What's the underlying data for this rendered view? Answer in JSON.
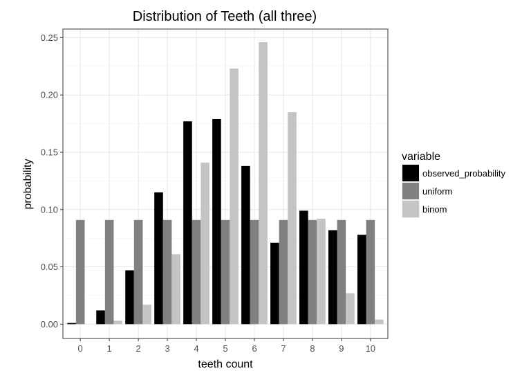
{
  "chart_data": {
    "type": "bar",
    "title": "Distribution of Teeth (all three)",
    "xlabel": "teeth count",
    "ylabel": "probability",
    "categories": [
      "0",
      "1",
      "2",
      "3",
      "4",
      "5",
      "6",
      "7",
      "8",
      "9",
      "10"
    ],
    "ylim": [
      -0.0125,
      0.2575
    ],
    "yticks": [
      0.0,
      0.05,
      0.1,
      0.15,
      0.2,
      0.25
    ],
    "ytick_labels": [
      "0.00",
      "0.05",
      "0.10",
      "0.15",
      "0.20",
      "0.25"
    ],
    "grid": true,
    "legend_title": "variable",
    "legend_position": "right",
    "series": [
      {
        "name": "observed_probability",
        "color": "#000000",
        "values": [
          0.001,
          0.012,
          0.047,
          0.115,
          0.177,
          0.179,
          0.138,
          0.071,
          0.099,
          0.082,
          0.078
        ]
      },
      {
        "name": "uniform",
        "color": "#808080",
        "values": [
          0.0909,
          0.0909,
          0.0909,
          0.0909,
          0.0909,
          0.0909,
          0.0909,
          0.0909,
          0.0909,
          0.0909,
          0.0909
        ]
      },
      {
        "name": "binom",
        "color": "#c4c4c4",
        "values": [
          0.0,
          0.003,
          0.017,
          0.061,
          0.141,
          0.223,
          0.246,
          0.185,
          0.092,
          0.027,
          0.004
        ]
      }
    ]
  }
}
